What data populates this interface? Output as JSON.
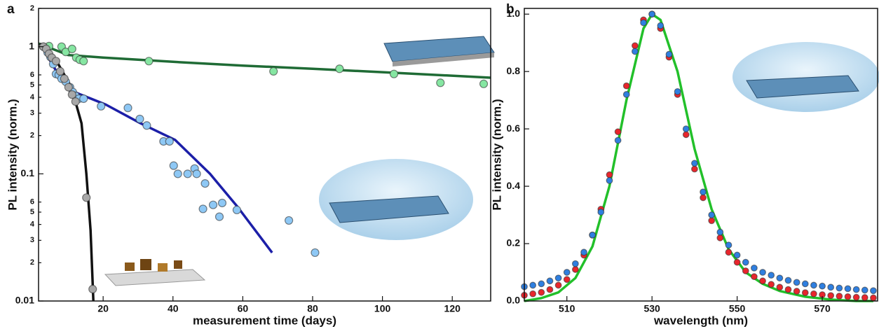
{
  "chart_data": [
    {
      "type": "scatter",
      "title": "a",
      "x_label": "measurement time (days)",
      "y_label": "PL intensity (norm.)",
      "ylog": true,
      "xlim": [
        1.5,
        131
      ],
      "ylim": [
        0.01,
        2
      ],
      "xticks": [
        20,
        40,
        60,
        80,
        100,
        120
      ],
      "yticks": [
        0.01,
        {
          "value": 0.02,
          "label": "2"
        },
        {
          "value": 0.03,
          "label": "3"
        },
        {
          "value": 0.04,
          "label": "4"
        },
        {
          "value": 0.05,
          "label": "5"
        },
        {
          "value": 0.06,
          "label": "6"
        },
        0.1,
        {
          "value": 0.2,
          "label": "2"
        },
        {
          "value": 0.3,
          "label": "3"
        },
        {
          "value": 0.4,
          "label": "4"
        },
        {
          "value": 0.5,
          "label": "5"
        },
        {
          "value": 0.6,
          "label": "6"
        },
        1,
        {
          "value": 2,
          "label": "2"
        }
      ],
      "series": [
        {
          "mode": "line",
          "color": "#1f6b35",
          "x": [
            1.5,
            10,
            20,
            40,
            60,
            80,
            100,
            131
          ],
          "values": [
            1.06,
            0.86,
            0.82,
            0.76,
            0.71,
            0.67,
            0.63,
            0.57
          ]
        },
        {
          "mode": "line",
          "color": "#1c1fa8",
          "x": [
            2.5,
            6.9,
            10.9,
            20.8,
            30.7,
            40.6,
            50.6,
            58.5,
            68.4
          ],
          "values": [
            1.0,
            0.62,
            0.45,
            0.35,
            0.25,
            0.185,
            0.1,
            0.055,
            0.024
          ]
        },
        {
          "mode": "line",
          "color": "#111111",
          "x": [
            1.9,
            6.9,
            10.9,
            13.8,
            15.2,
            16.4,
            17.2
          ],
          "values": [
            1.06,
            0.75,
            0.48,
            0.25,
            0.1,
            0.036,
            0.01
          ]
        },
        {
          "mode": "markers",
          "color": "#86e6a2",
          "x": [
            4.5,
            8.1,
            9.3,
            11.1,
            12.3,
            13.3,
            14.4,
            33.1,
            68.8,
            87.7,
            103.3,
            116.6,
            129
          ],
          "values": [
            1.01,
            1.0,
            0.91,
            0.96,
            0.82,
            0.79,
            0.77,
            0.77,
            0.64,
            0.67,
            0.61,
            0.52,
            0.51
          ]
        },
        {
          "mode": "markers",
          "color": "#8ec8f5",
          "x": [
            2.9,
            4.1,
            4.9,
            5.7,
            6.5,
            7.3,
            8.1,
            9.3,
            10.5,
            11.3,
            12.1,
            13.1,
            14.4,
            19.4,
            27.1,
            30.5,
            32.5,
            37.3,
            39.0,
            40.2,
            41.4,
            44.2,
            46.2,
            46.8,
            49.2,
            48.6,
            51.5,
            53.3,
            54.1,
            58.3,
            73.2,
            80.7
          ],
          "values": [
            1.0,
            0.9,
            0.83,
            0.73,
            0.61,
            0.6,
            0.56,
            0.53,
            0.48,
            0.44,
            0.41,
            0.39,
            0.39,
            0.34,
            0.33,
            0.27,
            0.24,
            0.18,
            0.18,
            0.116,
            0.1,
            0.1,
            0.11,
            0.1,
            0.084,
            0.053,
            0.057,
            0.046,
            0.059,
            0.052,
            0.043,
            0.024
          ]
        },
        {
          "mode": "markers",
          "color": "#a8a8a8",
          "x": [
            2.9,
            3.7,
            4.5,
            5.3,
            6.5,
            7.7,
            8.9,
            10.1,
            11.1,
            12.1,
            15.2,
            17.0
          ],
          "values": [
            1.0,
            0.96,
            0.88,
            0.82,
            0.77,
            0.64,
            0.56,
            0.48,
            0.42,
            0.37,
            0.065,
            0.0124
          ]
        }
      ]
    },
    {
      "type": "scatter",
      "title": "b",
      "x_label": "wavelength (nm)",
      "y_label": "PL intensity (norm.)",
      "ylog": false,
      "xlim": [
        500,
        583
      ],
      "ylim": [
        0,
        1.02
      ],
      "xticks": [
        510,
        530,
        550,
        570
      ],
      "yticks": [
        {
          "value": 0,
          "label": "0.0"
        },
        0.2,
        0.4,
        0.6,
        0.8,
        {
          "value": 1,
          "label": "1.0"
        }
      ],
      "series": [
        {
          "mode": "markers",
          "color": "#e8262c",
          "x": [
            500,
            502,
            504,
            506,
            508,
            510,
            512,
            514,
            516,
            518,
            520,
            522,
            524,
            526,
            528,
            530,
            532,
            534,
            536,
            538,
            540,
            542,
            544,
            546,
            548,
            550,
            552,
            554,
            556,
            558,
            560,
            562,
            564,
            566,
            568,
            570,
            572,
            574,
            576,
            578,
            580,
            582
          ],
          "values": [
            0.02,
            0.025,
            0.03,
            0.04,
            0.055,
            0.075,
            0.11,
            0.16,
            0.23,
            0.32,
            0.44,
            0.59,
            0.75,
            0.89,
            0.98,
            1.0,
            0.95,
            0.85,
            0.72,
            0.58,
            0.46,
            0.36,
            0.28,
            0.22,
            0.17,
            0.135,
            0.105,
            0.085,
            0.07,
            0.058,
            0.048,
            0.04,
            0.034,
            0.029,
            0.025,
            0.022,
            0.019,
            0.017,
            0.015,
            0.013,
            0.012,
            0.011
          ]
        },
        {
          "mode": "markers",
          "color": "#2f7fe0",
          "x": [
            500,
            502,
            504,
            506,
            508,
            510,
            512,
            514,
            516,
            518,
            520,
            522,
            524,
            526,
            528,
            530,
            532,
            534,
            536,
            538,
            540,
            542,
            544,
            546,
            548,
            550,
            552,
            554,
            556,
            558,
            560,
            562,
            564,
            566,
            568,
            570,
            572,
            574,
            576,
            578,
            580,
            582
          ],
          "values": [
            0.05,
            0.055,
            0.06,
            0.07,
            0.08,
            0.1,
            0.13,
            0.17,
            0.23,
            0.31,
            0.42,
            0.56,
            0.72,
            0.87,
            0.97,
            1.0,
            0.96,
            0.86,
            0.73,
            0.6,
            0.48,
            0.38,
            0.3,
            0.24,
            0.195,
            0.16,
            0.135,
            0.115,
            0.1,
            0.09,
            0.08,
            0.072,
            0.065,
            0.06,
            0.055,
            0.052,
            0.048,
            0.045,
            0.043,
            0.04,
            0.038,
            0.036
          ]
        },
        {
          "mode": "line",
          "color": "#22c02a",
          "x": [
            500,
            504,
            508,
            512,
            516,
            520,
            524,
            528,
            530,
            532,
            536,
            540,
            544,
            548,
            552,
            556,
            560,
            566,
            572,
            578,
            582
          ],
          "values": [
            0.0,
            0.01,
            0.03,
            0.08,
            0.19,
            0.4,
            0.7,
            0.95,
            1.0,
            0.98,
            0.8,
            0.53,
            0.32,
            0.18,
            0.1,
            0.06,
            0.035,
            0.015,
            0.005,
            0.0,
            0.0
          ]
        }
      ]
    }
  ]
}
